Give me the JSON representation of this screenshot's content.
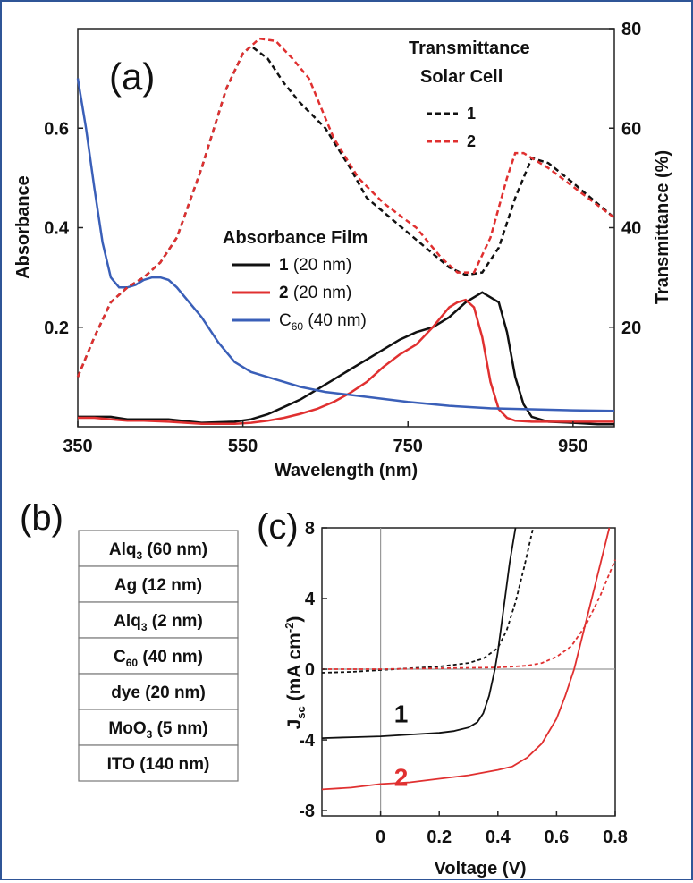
{
  "panels": {
    "a": "(a)",
    "b": "(b)",
    "c": "(c)"
  },
  "chart_data": [
    {
      "panel": "a",
      "type": "line",
      "xlabel": "Wavelength (nm)",
      "ylabel": "Absorbance",
      "ylabel_right": "Transmittance (%)",
      "xlim": [
        350,
        1000
      ],
      "ylim": [
        0,
        0.8
      ],
      "ylim_right": [
        0,
        80
      ],
      "xticks": [
        "350",
        "550",
        "750",
        "950"
      ],
      "xtick_values": [
        350,
        550,
        750,
        950
      ],
      "yticks": [
        "0.2",
        "0.4",
        "0.6"
      ],
      "ytick_values": [
        0.2,
        0.4,
        0.6
      ],
      "yticks_right": [
        "20",
        "40",
        "60",
        "80"
      ],
      "ytick_values_right": [
        20,
        40,
        60,
        80
      ],
      "legend_transmittance": {
        "title1": "Transmittance",
        "title2": "Solar Cell",
        "items": [
          "1",
          "2"
        ]
      },
      "legend_absorbance": {
        "title": "Absorbance Film",
        "items": [
          {
            "label": "1",
            "suffix": " (20 nm)"
          },
          {
            "label": "2",
            "suffix": " (20 nm)"
          },
          {
            "label": "C",
            "sub": "60",
            "suffix": " (40 nm)"
          }
        ]
      },
      "colors": {
        "black": "#111111",
        "red": "#e03030",
        "blue": "#3a5fb8"
      },
      "series": [
        {
          "name": "1",
          "kind": "absorbance",
          "style": "solid",
          "color": "#111111",
          "x": [
            350,
            370,
            390,
            410,
            430,
            460,
            500,
            540,
            560,
            580,
            600,
            620,
            640,
            660,
            680,
            700,
            720,
            740,
            760,
            780,
            800,
            820,
            840,
            860,
            870,
            880,
            890,
            900,
            920,
            950,
            980,
            1000
          ],
          "y": [
            0.02,
            0.02,
            0.02,
            0.015,
            0.015,
            0.015,
            0.008,
            0.01,
            0.015,
            0.025,
            0.04,
            0.055,
            0.075,
            0.095,
            0.115,
            0.135,
            0.155,
            0.175,
            0.19,
            0.2,
            0.22,
            0.25,
            0.27,
            0.25,
            0.19,
            0.1,
            0.045,
            0.02,
            0.01,
            0.008,
            0.005,
            0.005
          ]
        },
        {
          "name": "2",
          "kind": "absorbance",
          "style": "solid",
          "color": "#e03030",
          "x": [
            350,
            370,
            390,
            410,
            430,
            460,
            500,
            540,
            560,
            580,
            600,
            620,
            640,
            660,
            680,
            700,
            720,
            740,
            760,
            780,
            800,
            810,
            820,
            830,
            840,
            850,
            860,
            870,
            880,
            900,
            950,
            1000
          ],
          "y": [
            0.018,
            0.018,
            0.015,
            0.012,
            0.012,
            0.01,
            0.006,
            0.006,
            0.008,
            0.012,
            0.018,
            0.026,
            0.036,
            0.05,
            0.068,
            0.09,
            0.12,
            0.145,
            0.165,
            0.2,
            0.24,
            0.25,
            0.255,
            0.24,
            0.18,
            0.09,
            0.035,
            0.018,
            0.012,
            0.01,
            0.01,
            0.01
          ]
        },
        {
          "name": "C60",
          "kind": "absorbance",
          "style": "solid",
          "color": "#3a5fb8",
          "x": [
            350,
            360,
            370,
            380,
            390,
            400,
            410,
            420,
            430,
            440,
            450,
            460,
            470,
            480,
            500,
            520,
            540,
            560,
            580,
            600,
            620,
            650,
            700,
            750,
            800,
            850,
            900,
            950,
            1000
          ],
          "y": [
            0.7,
            0.6,
            0.48,
            0.37,
            0.3,
            0.28,
            0.28,
            0.285,
            0.295,
            0.3,
            0.3,
            0.295,
            0.28,
            0.26,
            0.22,
            0.17,
            0.13,
            0.11,
            0.1,
            0.09,
            0.08,
            0.07,
            0.06,
            0.05,
            0.042,
            0.037,
            0.035,
            0.033,
            0.032
          ]
        },
        {
          "name": "1",
          "kind": "transmittance",
          "style": "dashed",
          "color": "#111111",
          "x": [
            350,
            370,
            390,
            410,
            430,
            450,
            470,
            500,
            530,
            550,
            560,
            580,
            600,
            620,
            650,
            680,
            700,
            750,
            800,
            820,
            840,
            860,
            880,
            900,
            920,
            950,
            1000
          ],
          "y": [
            10,
            18,
            25,
            28,
            30,
            33,
            38,
            52,
            68,
            75,
            76.5,
            74,
            69,
            65,
            60,
            52,
            46,
            39,
            32,
            30.5,
            31,
            36,
            46,
            54,
            53,
            49,
            42
          ]
        },
        {
          "name": "2",
          "kind": "transmittance",
          "style": "dashed",
          "color": "#e03030",
          "x": [
            350,
            370,
            390,
            410,
            430,
            450,
            470,
            500,
            530,
            550,
            570,
            590,
            610,
            630,
            660,
            690,
            720,
            760,
            790,
            810,
            830,
            850,
            870,
            880,
            890,
            920,
            960,
            1000
          ],
          "y": [
            10,
            18,
            25,
            28,
            30,
            33,
            38,
            52,
            68,
            75,
            78,
            77.5,
            74,
            70,
            58,
            50,
            45,
            40,
            34,
            31,
            31,
            38,
            50,
            55,
            55,
            52,
            47,
            42
          ]
        }
      ]
    },
    {
      "panel": "b",
      "type": "table",
      "rows": [
        {
          "name": "Alq",
          "sub": "3",
          "thick": " (60 nm)"
        },
        {
          "name": "Ag",
          "sub": "",
          "thick": " (12 nm)"
        },
        {
          "name": "Alq",
          "sub": "3",
          "thick": " (2 nm)"
        },
        {
          "name": "C",
          "sub": "60",
          "thick": " (40 nm)"
        },
        {
          "name": "dye",
          "sub": "",
          "thick": " (20 nm)"
        },
        {
          "name": "MoO",
          "sub": "3",
          "thick": " (5 nm)"
        },
        {
          "name": "ITO",
          "sub": "",
          "thick": " (140 nm)"
        }
      ]
    },
    {
      "panel": "c",
      "type": "line",
      "xlabel": "Voltage (V)",
      "ylabel_main": "J",
      "ylabel_sub": "sc",
      "ylabel_rest": " (mA cm",
      "ylabel_sup": "-2",
      "ylabel_end": ")",
      "xlim": [
        -0.2,
        0.8
      ],
      "ylim": [
        -8.3,
        8
      ],
      "xticks": [
        "0",
        "0.2",
        "0.4",
        "0.6",
        "0.8"
      ],
      "xtick_values": [
        0,
        0.2,
        0.4,
        0.6,
        0.8
      ],
      "yticks": [
        "8",
        "4",
        "0",
        "-4",
        "-8"
      ],
      "ytick_values": [
        8,
        4,
        0,
        -4,
        -8
      ],
      "labels": [
        {
          "text": "1",
          "x": 0.07,
          "y": -3.0,
          "color": "#111111"
        },
        {
          "text": "2",
          "x": 0.07,
          "y": -6.6,
          "color": "#e03030"
        }
      ],
      "series": [
        {
          "name": "1",
          "kind": "light",
          "style": "solid",
          "color": "#111111",
          "x": [
            -0.2,
            -0.1,
            0,
            0.1,
            0.2,
            0.25,
            0.3,
            0.33,
            0.35,
            0.37,
            0.39,
            0.4,
            0.42,
            0.44,
            0.46
          ],
          "y": [
            -3.9,
            -3.85,
            -3.8,
            -3.7,
            -3.6,
            -3.5,
            -3.3,
            -3.0,
            -2.5,
            -1.5,
            0,
            1,
            3.5,
            6,
            8
          ]
        },
        {
          "name": "1",
          "kind": "dark",
          "style": "dashed",
          "color": "#111111",
          "x": [
            -0.2,
            -0.1,
            0,
            0.1,
            0.2,
            0.3,
            0.35,
            0.4,
            0.43,
            0.46,
            0.49,
            0.52
          ],
          "y": [
            -0.2,
            -0.15,
            -0.05,
            0.05,
            0.15,
            0.35,
            0.6,
            1.2,
            2.2,
            3.8,
            5.8,
            8
          ]
        },
        {
          "name": "2",
          "kind": "light",
          "style": "solid",
          "color": "#e03030",
          "x": [
            -0.2,
            -0.1,
            0,
            0.1,
            0.2,
            0.3,
            0.4,
            0.45,
            0.5,
            0.55,
            0.6,
            0.63,
            0.66,
            0.69,
            0.72,
            0.75,
            0.78
          ],
          "y": [
            -6.8,
            -6.7,
            -6.5,
            -6.4,
            -6.2,
            -6.0,
            -5.7,
            -5.5,
            -5.0,
            -4.2,
            -2.8,
            -1.5,
            0,
            2,
            4,
            6,
            8
          ]
        },
        {
          "name": "2",
          "kind": "dark",
          "style": "dashed",
          "color": "#e03030",
          "x": [
            -0.2,
            0,
            0.2,
            0.4,
            0.5,
            0.55,
            0.6,
            0.65,
            0.7,
            0.75,
            0.8
          ],
          "y": [
            0,
            0,
            0.05,
            0.1,
            0.2,
            0.35,
            0.7,
            1.3,
            2.5,
            4.2,
            6.2
          ]
        }
      ]
    }
  ]
}
